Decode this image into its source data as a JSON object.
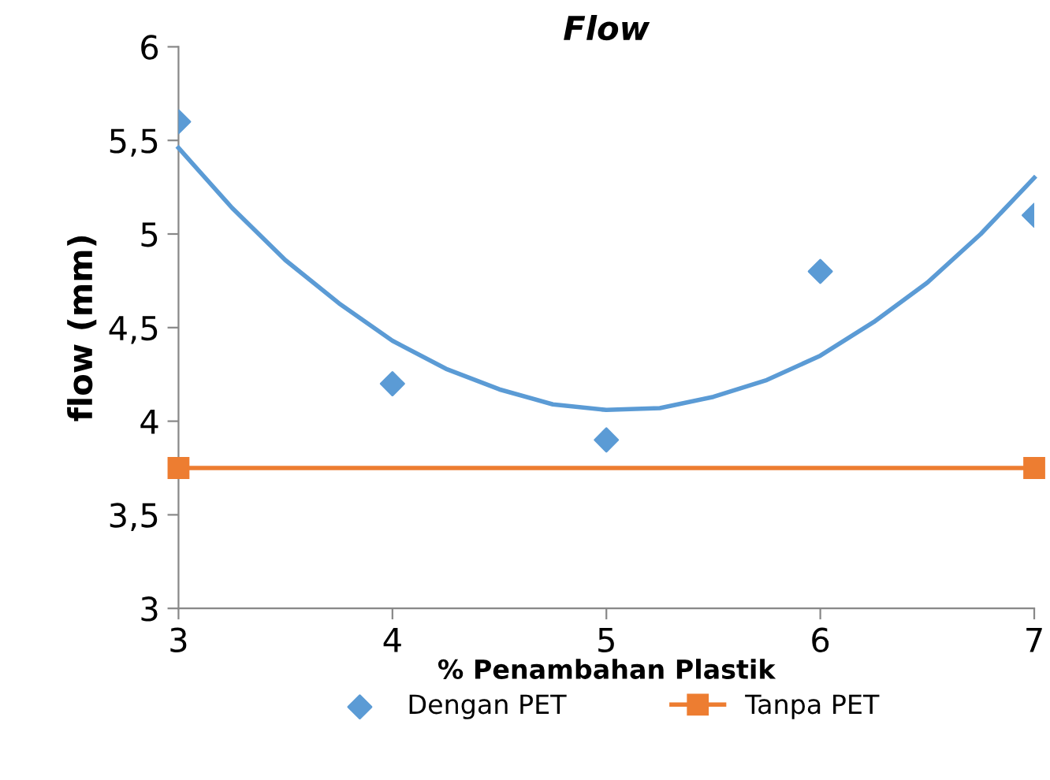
{
  "chart_data": {
    "type": "scatter",
    "title": "Flow",
    "xlabel": "% Penambahan Plastik",
    "ylabel": "flow (mm)",
    "xlim": [
      3,
      7
    ],
    "xticks": [
      3,
      4,
      5,
      6,
      7
    ],
    "ylim": [
      3,
      6
    ],
    "yticks": [
      3,
      {
        "value": 3.5,
        "label": "3,5"
      },
      4,
      {
        "value": 4.5,
        "label": "4,5"
      },
      5,
      {
        "value": 5.5,
        "label": "5,5"
      },
      6
    ],
    "grid": false,
    "legend": "bottom",
    "series": [
      {
        "name": "Dengan PET",
        "marker": "diamond",
        "color": "#5b9bd5",
        "x": [
          3,
          4,
          5,
          6,
          7
        ],
        "values": [
          5.6,
          4.2,
          3.9,
          4.8,
          5.1
        ]
      },
      {
        "name": "Tanpa PET",
        "type": "line",
        "marker": "square",
        "line_style": "solid",
        "color": "#ed7d31",
        "x": [
          3,
          7
        ],
        "values": [
          3.75,
          3.75
        ]
      },
      {
        "type": "line",
        "marker": "none",
        "line_style": "solid",
        "color": "#5b9bd5",
        "x": [
          3,
          3.25,
          3.5,
          3.75,
          4,
          4.25,
          4.5,
          4.75,
          5,
          5.25,
          5.5,
          5.75,
          6,
          6.25,
          6.5,
          6.75,
          7
        ],
        "values": [
          5.46,
          5.14,
          4.86,
          4.63,
          4.43,
          4.28,
          4.17,
          4.09,
          4.06,
          4.07,
          4.13,
          4.22,
          4.35,
          4.53,
          4.74,
          5.0,
          5.3
        ]
      }
    ]
  }
}
